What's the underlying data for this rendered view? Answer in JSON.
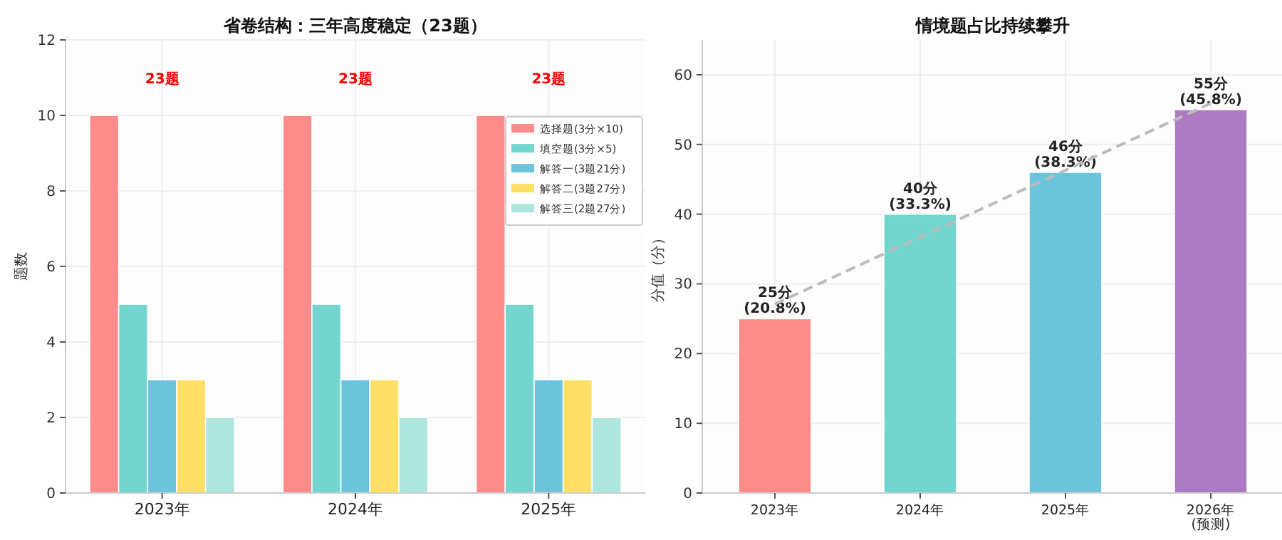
{
  "chart_data": [
    {
      "type": "bar",
      "title": "省卷结构：三年高度稳定（23题）",
      "ylabel": "题数",
      "categories": [
        "2023年",
        "2024年",
        "2025年"
      ],
      "series": [
        {
          "name": "选择题(3分×10)",
          "color": "#ff8a8a",
          "values": [
            10,
            10,
            10
          ]
        },
        {
          "name": "填空题(3分×5)",
          "color": "#72d6cf",
          "values": [
            5,
            5,
            5
          ]
        },
        {
          "name": "解答一(3题21分)",
          "color": "#6bc4db",
          "values": [
            3,
            3,
            3
          ]
        },
        {
          "name": "解答二(3题27分)",
          "color": "#ffdf66",
          "values": [
            3,
            3,
            3
          ]
        },
        {
          "name": "解答三(2题27分)",
          "color": "#ace6dc",
          "values": [
            2,
            2,
            2
          ]
        }
      ],
      "ylim": [
        0,
        12
      ],
      "yticks": [
        0,
        2,
        4,
        6,
        8,
        10,
        12
      ],
      "grid": true,
      "legend": "right",
      "annotations": [
        "23题",
        "23题",
        "23题"
      ]
    },
    {
      "type": "bar",
      "title": "情境题占比持续攀升",
      "ylabel": "分值（分）",
      "categories": [
        "2023年",
        "2024年",
        "2025年",
        "2026年\n(预测)"
      ],
      "series": [
        {
          "colors": [
            "#ff8a8a",
            "#72d6cf",
            "#6bc4db",
            "#ad7bc4"
          ],
          "values": [
            25,
            40,
            46,
            55
          ],
          "value_labels": [
            "25分\n(20.8%)",
            "40分\n(33.3%)",
            "46分\n(38.3%)",
            "55分\n(45,8%)"
          ]
        },
        {
          "type": "line",
          "color": "#bbbbbb",
          "line_style": "dashed",
          "marker": "none",
          "x": [
            "2023年",
            "2024年",
            "2025年",
            "2026年\n(预测)"
          ],
          "values": [
            27.1,
            36.7,
            46.3,
            55.9
          ]
        }
      ],
      "ylim": [
        0,
        65
      ],
      "yticks": [
        0,
        10,
        20,
        30,
        40,
        50,
        60
      ],
      "grid": true,
      "legend": false
    }
  ]
}
